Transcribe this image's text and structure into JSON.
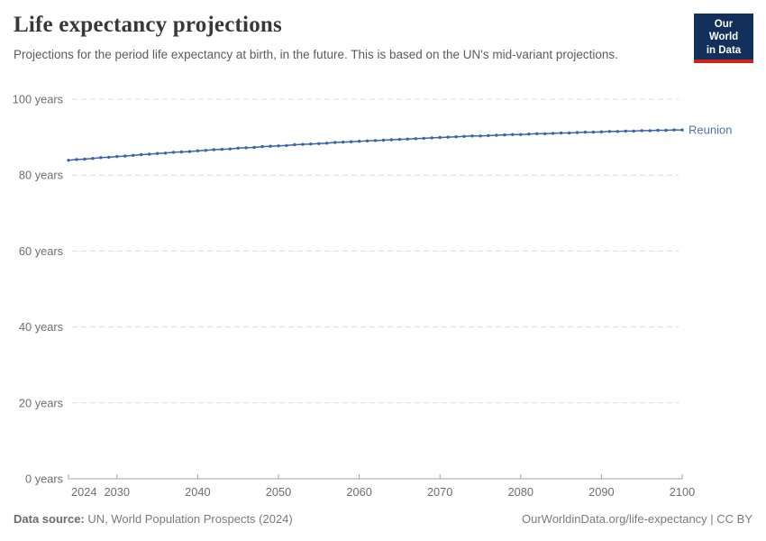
{
  "header": {
    "title": "Life expectancy projections",
    "subtitle": "Projections for the period life expectancy at birth, in the future. This is based on the UN's mid-variant projections."
  },
  "logo": {
    "line1": "Our World",
    "line2": "in Data",
    "bg_color": "#12305B",
    "accent_color": "#D0231C"
  },
  "chart_data": {
    "type": "line",
    "title": "Life expectancy projections",
    "entity": "Reunion",
    "unit": "years",
    "xlim": [
      2024,
      2100
    ],
    "ylim": [
      0,
      100
    ],
    "xticks": [
      2024,
      2030,
      2040,
      2050,
      2060,
      2070,
      2080,
      2090,
      2100
    ],
    "yticks": [
      0,
      20,
      40,
      60,
      80,
      100
    ],
    "ytick_suffix": " years",
    "grid": "dashed-horizontal",
    "legend_position": "line-end-label",
    "series": [
      {
        "name": "Reunion",
        "color": "#3D63A8",
        "label_color": "#4E71B5",
        "years": [
          2024,
          2025,
          2026,
          2027,
          2028,
          2029,
          2030,
          2031,
          2032,
          2033,
          2034,
          2035,
          2036,
          2037,
          2038,
          2039,
          2040,
          2041,
          2042,
          2043,
          2044,
          2045,
          2046,
          2047,
          2048,
          2049,
          2050,
          2051,
          2052,
          2053,
          2054,
          2055,
          2056,
          2057,
          2058,
          2059,
          2060,
          2061,
          2062,
          2063,
          2064,
          2065,
          2066,
          2067,
          2068,
          2069,
          2070,
          2071,
          2072,
          2073,
          2074,
          2075,
          2076,
          2077,
          2078,
          2079,
          2080,
          2081,
          2082,
          2083,
          2084,
          2085,
          2086,
          2087,
          2088,
          2089,
          2090,
          2091,
          2092,
          2093,
          2094,
          2095,
          2096,
          2097,
          2098,
          2099,
          2100
        ],
        "values": [
          83.9,
          84.1,
          84.2,
          84.4,
          84.6,
          84.7,
          84.9,
          85.0,
          85.2,
          85.4,
          85.5,
          85.7,
          85.8,
          86.0,
          86.1,
          86.2,
          86.4,
          86.5,
          86.7,
          86.8,
          86.9,
          87.1,
          87.2,
          87.3,
          87.5,
          87.6,
          87.7,
          87.8,
          88.0,
          88.1,
          88.2,
          88.3,
          88.4,
          88.6,
          88.7,
          88.8,
          88.9,
          89.0,
          89.1,
          89.2,
          89.3,
          89.4,
          89.5,
          89.6,
          89.7,
          89.8,
          89.9,
          90.0,
          90.1,
          90.2,
          90.3,
          90.3,
          90.4,
          90.5,
          90.6,
          90.7,
          90.7,
          90.8,
          90.9,
          90.9,
          91.0,
          91.1,
          91.1,
          91.2,
          91.3,
          91.3,
          91.4,
          91.5,
          91.5,
          91.6,
          91.6,
          91.7,
          91.7,
          91.8,
          91.8,
          91.9,
          91.9
        ]
      }
    ]
  },
  "footer": {
    "source_label": "Data source:",
    "source_value": "UN, World Population Prospects (2024)",
    "credit": "OurWorldinData.org/life-expectancy | CC BY"
  }
}
